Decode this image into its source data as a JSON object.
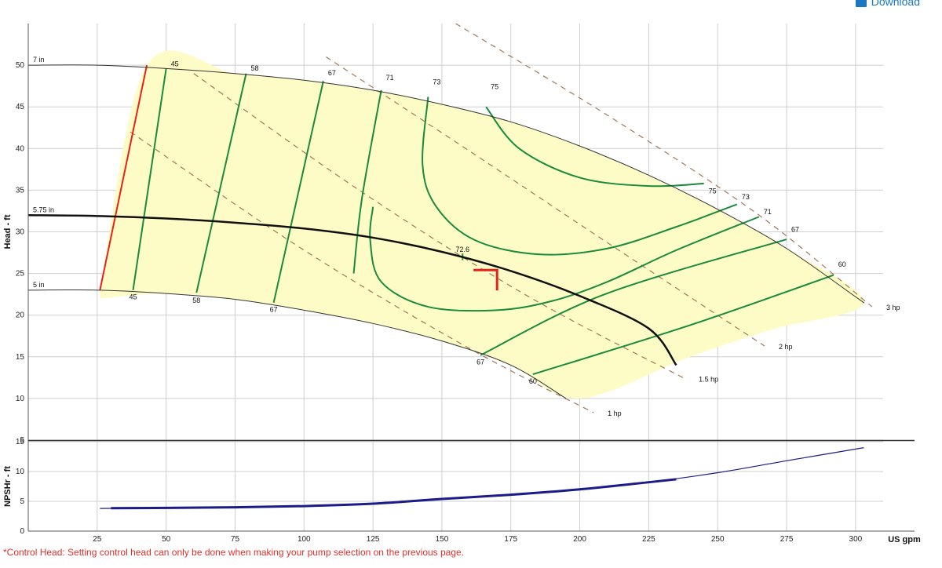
{
  "download": {
    "label": "Download",
    "icon": "download-icon"
  },
  "note": "*Control Head: Setting control head can only be done when making your pump selection on the previous page.",
  "colors": {
    "region": "#fefcc6",
    "efficiency": "#1a8a3c",
    "impeller": "#333333",
    "selected_impeller": "#111111",
    "power": "#a0785a",
    "min_flow": "#e8221b",
    "npsh": "#1b1b8a",
    "marker": "#e8221b",
    "grid": "#cfcfcf"
  },
  "chart_data": [
    {
      "type": "line",
      "name": "pump-curve",
      "xlabel": "US gpm",
      "ylabel": "Head - ft",
      "xlim": [
        0,
        310
      ],
      "ylim": [
        5,
        55
      ],
      "x_ticks": [
        25,
        50,
        75,
        100,
        125,
        150,
        175,
        200,
        225,
        250,
        275,
        300
      ],
      "y_ticks": [
        5,
        10,
        15,
        20,
        25,
        30,
        35,
        40,
        45,
        50
      ],
      "grid": true,
      "impeller_curves": [
        {
          "label": "7 in",
          "points": [
            [
              0,
              50
            ],
            [
              25,
              50
            ],
            [
              50,
              49.6
            ],
            [
              75,
              49
            ],
            [
              100,
              48.2
            ],
            [
              125,
              47
            ],
            [
              150,
              45.3
            ],
            [
              175,
              43.2
            ],
            [
              200,
              40.3
            ],
            [
              225,
              36.8
            ],
            [
              250,
              32.7
            ],
            [
              275,
              28
            ],
            [
              300,
              22.2
            ],
            [
              303,
              21.5
            ]
          ]
        },
        {
          "label": "5.75 in",
          "points": [
            [
              0,
              32
            ],
            [
              25,
              31.9
            ],
            [
              50,
              31.6
            ],
            [
              75,
              31.1
            ],
            [
              100,
              30.4
            ],
            [
              125,
              29.3
            ],
            [
              150,
              27.6
            ],
            [
              175,
              25.3
            ],
            [
              200,
              22.3
            ],
            [
              225,
              18.4
            ],
            [
              235,
              14
            ]
          ]
        },
        {
          "label": "5 in",
          "points": [
            [
              0,
              23
            ],
            [
              25,
              23
            ],
            [
              50,
              22.6
            ],
            [
              75,
              21.9
            ],
            [
              100,
              20.6
            ],
            [
              125,
              19
            ],
            [
              150,
              16.9
            ],
            [
              175,
              14
            ],
            [
              195,
              10
            ]
          ]
        }
      ],
      "selected_impeller": "5.75 in",
      "efficiency_labels_top": [
        "45",
        "58",
        "67",
        "71",
        "73",
        "75"
      ],
      "efficiency_labels_bottom": [
        "45",
        "58",
        "67",
        "67",
        "60"
      ],
      "efficiency_labels_right": [
        "75",
        "73",
        "71",
        "67",
        "60"
      ],
      "efficiency_iso_lines": [
        {
          "label": "45",
          "points": [
            [
              50,
              49.6
            ],
            [
              38,
              23
            ]
          ]
        },
        {
          "label": "58",
          "points": [
            [
              79,
              49
            ],
            [
              61,
              22.7
            ]
          ]
        },
        {
          "label": "67",
          "points": [
            [
              107,
              48.1
            ],
            [
              89,
              21.5
            ]
          ]
        },
        {
          "label": "71",
          "points": [
            [
              128,
              47
            ],
            [
              121,
              34
            ],
            [
              118,
              25
            ]
          ]
        },
        {
          "label": "67",
          "points": [
            [
              164,
              15.2
            ],
            [
              209,
              22.5
            ],
            [
              275,
              29.1
            ]
          ]
        },
        {
          "label": "60",
          "points": [
            [
              183,
              12.9
            ],
            [
              240,
              18.8
            ],
            [
              292,
              24.8
            ]
          ]
        }
      ],
      "efficiency_loops": [
        {
          "label": "73",
          "points": [
            [
              145,
              46.2
            ],
            [
              143,
              38
            ],
            [
              148,
              33
            ],
            [
              162,
              29
            ],
            [
              185,
              27.3
            ],
            [
              210,
              28
            ],
            [
              235,
              30.6
            ],
            [
              257,
              33.3
            ]
          ]
        },
        {
          "label": "75",
          "points": [
            [
              166,
              45
            ],
            [
              178,
              40
            ],
            [
              200,
              36.5
            ],
            [
              225,
              35.5
            ],
            [
              245,
              35.8
            ]
          ]
        },
        {
          "label": "72.6",
          "points": [
            [
              125,
              33
            ],
            [
              124,
              29
            ],
            [
              128,
              24
            ],
            [
              145,
              21
            ],
            [
              170,
              20.6
            ],
            [
              190,
              21.7
            ],
            [
              210,
              24
            ],
            [
              235,
              27.8
            ],
            [
              265,
              31.8
            ]
          ]
        }
      ],
      "power_curves": [
        {
          "label": "1 hp",
          "points": [
            [
              37,
              42
            ],
            [
              100,
              27.8
            ],
            [
              160,
              16
            ],
            [
              205,
              8.3
            ]
          ]
        },
        {
          "label": "1.5 hp",
          "points": [
            [
              60,
              49
            ],
            [
              120,
              35
            ],
            [
              180,
              22.5
            ],
            [
              238,
              12.4
            ]
          ]
        },
        {
          "label": "2 hp",
          "points": [
            [
              108,
              51
            ],
            [
              160,
              39.7
            ],
            [
              210,
              28.7
            ],
            [
              267,
              16.3
            ]
          ]
        },
        {
          "label": "3 hp",
          "points": [
            [
              155,
              55
            ],
            [
              210,
              44
            ],
            [
              265,
              32
            ],
            [
              306,
              21
            ]
          ]
        }
      ],
      "min_flow_line": [
        [
          43,
          50
        ],
        [
          26,
          23
        ]
      ],
      "operating_point": {
        "label": "72.6",
        "x": 170,
        "y": 25.5
      },
      "region_boundary": [
        [
          26,
          23
        ],
        [
          43,
          50
        ],
        [
          75,
          49
        ],
        [
          100,
          48.2
        ],
        [
          125,
          47
        ],
        [
          150,
          45.3
        ],
        [
          175,
          43.2
        ],
        [
          200,
          40.3
        ],
        [
          225,
          36.8
        ],
        [
          250,
          32.7
        ],
        [
          275,
          28
        ],
        [
          303,
          21.5
        ],
        [
          270,
          18.3
        ],
        [
          240,
          15
        ],
        [
          200,
          10
        ],
        [
          175,
          14
        ],
        [
          150,
          16.9
        ],
        [
          125,
          19
        ],
        [
          100,
          20.6
        ],
        [
          75,
          21.9
        ],
        [
          50,
          22.6
        ],
        [
          26,
          22
        ]
      ]
    },
    {
      "type": "line",
      "name": "npsh-curve",
      "xlabel": "US gpm",
      "ylabel": "NPSHr - ft",
      "xlim": [
        0,
        310
      ],
      "ylim": [
        0,
        15
      ],
      "x_ticks": [
        25,
        50,
        75,
        100,
        125,
        150,
        175,
        200,
        225,
        250,
        275,
        300
      ],
      "y_ticks": [
        0,
        5,
        10,
        15
      ],
      "grid": true,
      "series": [
        {
          "points": [
            [
              26,
              3.8
            ],
            [
              50,
              3.9
            ],
            [
              75,
              4
            ],
            [
              100,
              4.2
            ],
            [
              125,
              4.6
            ],
            [
              150,
              5.4
            ],
            [
              175,
              6.1
            ],
            [
              200,
              7
            ],
            [
              225,
              8.2
            ],
            [
              250,
              9.8
            ],
            [
              275,
              11.8
            ],
            [
              303,
              14
            ]
          ]
        }
      ],
      "highlight_range": [
        30,
        235
      ]
    }
  ]
}
